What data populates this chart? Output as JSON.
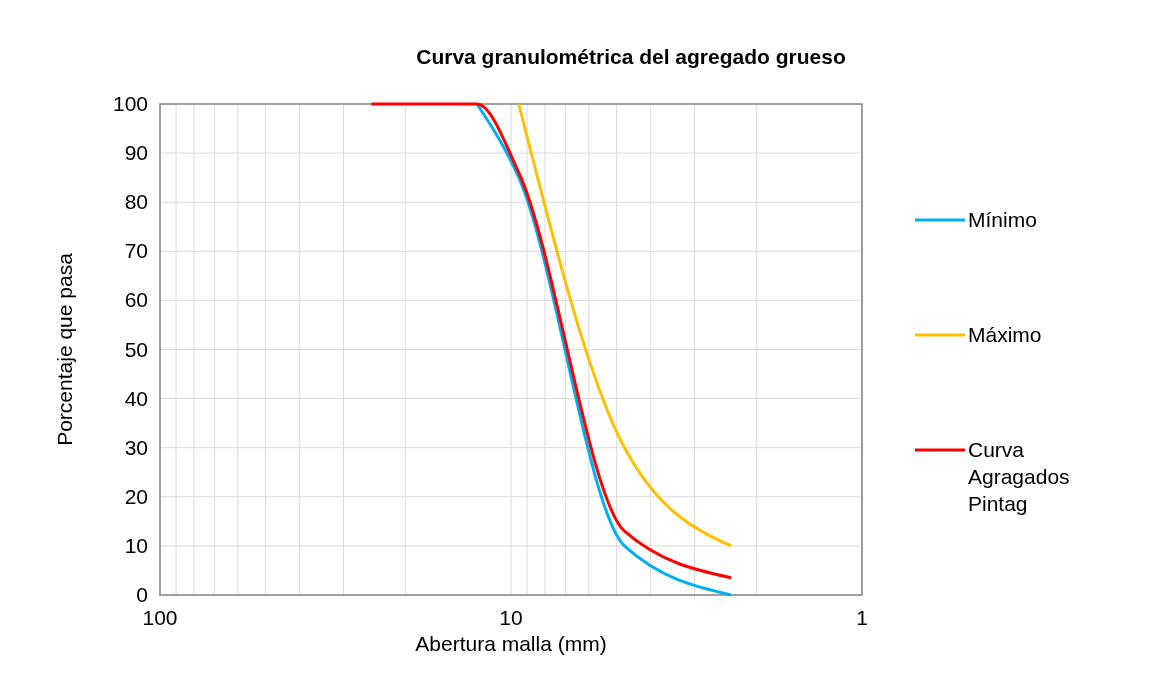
{
  "chart_data": {
    "type": "line",
    "title": "Curva granulométrica del agregado grueso",
    "xlabel": "Abertura malla  (mm)",
    "ylabel": "Porcentaje que pasa",
    "log": "x",
    "xlim": [
      100,
      1
    ],
    "ylim": [
      0,
      100
    ],
    "xticks": [
      100,
      {
        "value": 90,
        "label": null
      },
      {
        "value": 80,
        "label": null
      },
      {
        "value": 70,
        "label": null
      },
      {
        "value": 60,
        "label": null
      },
      {
        "value": 50,
        "label": null
      },
      {
        "value": 40,
        "label": null
      },
      {
        "value": 30,
        "label": null
      },
      {
        "value": 20,
        "label": null
      },
      10,
      {
        "value": 9,
        "label": null
      },
      {
        "value": 8,
        "label": null
      },
      {
        "value": 7,
        "label": null
      },
      {
        "value": 6,
        "label": null
      },
      {
        "value": 5,
        "label": null
      },
      {
        "value": 4,
        "label": null
      },
      {
        "value": 3,
        "label": null
      },
      {
        "value": 2,
        "label": null
      },
      1
    ],
    "yticks": [
      0,
      10,
      20,
      30,
      40,
      50,
      60,
      70,
      80,
      90,
      100
    ],
    "grid": true,
    "legend": "right",
    "marker": "none",
    "line_style": "solid",
    "series": [
      {
        "name": "Mínimo",
        "color": "#00b0f0",
        "x": [
          12.5,
          9.5,
          4.75,
          2.36
        ],
        "values": [
          100,
          85,
          10,
          0
        ]
      },
      {
        "name": "Máximo",
        "color": "#ffc000",
        "x": [
          9.5,
          4.75,
          2.36
        ],
        "values": [
          100,
          30,
          10
        ]
      },
      {
        "name": "Curva Agragados Pintag",
        "color": "#ff0000",
        "x": [
          25,
          19,
          12.5,
          9.5,
          4.75,
          2.36
        ],
        "values": [
          100,
          100,
          100,
          86,
          13,
          3.5
        ]
      }
    ]
  }
}
